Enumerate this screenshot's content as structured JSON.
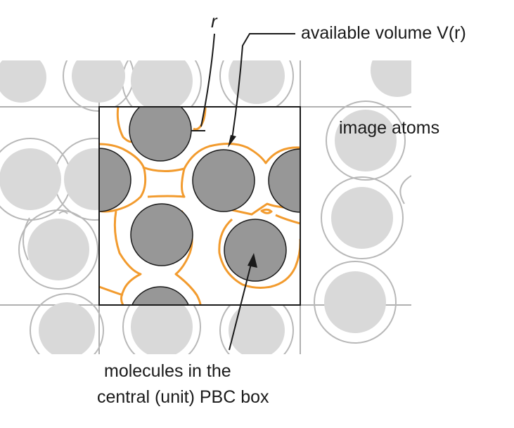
{
  "labels": {
    "probe_radius": "r",
    "available_volume": "available volume V(r)",
    "image_atoms": "image atoms",
    "central_molecules_line1": "molecules in the",
    "central_molecules_line2": "central (unit) PBC box"
  },
  "colors": {
    "central_atom": "#979797",
    "image_atom": "#d9d9d9",
    "available_volume_contour": "#f29b2e",
    "image_contour": "#b8b8b8",
    "box_border": "#1a1a1a",
    "grid_line": "#b0b0b0"
  }
}
